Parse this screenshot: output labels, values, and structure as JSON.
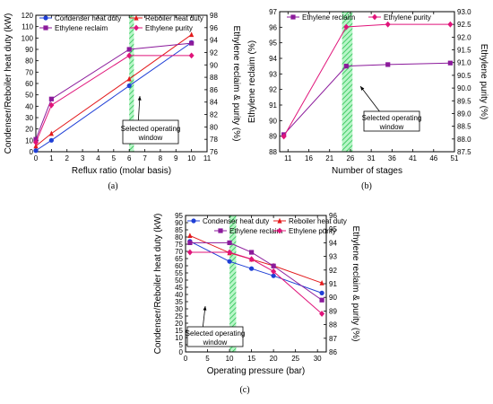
{
  "chart_data": [
    {
      "panel_label": "(a)",
      "type": "line",
      "xlabel": "Reflux ratio (molar basis)",
      "ylabel": "Condenser/Reboiler heat duty (kW)",
      "ylabel2": "Ethylene reclaim & purity (%)",
      "xlim": [
        0,
        11
      ],
      "ylim": [
        0,
        120
      ],
      "ylim2": [
        76,
        98
      ],
      "xticks": [
        0,
        1,
        2,
        3,
        4,
        5,
        6,
        7,
        8,
        9,
        10,
        11
      ],
      "yticks": [
        0,
        10,
        20,
        30,
        40,
        50,
        60,
        70,
        80,
        90,
        100,
        110,
        120
      ],
      "yticks2": [
        76,
        78,
        80,
        82,
        84,
        86,
        88,
        90,
        92,
        94,
        96,
        98
      ],
      "window": [
        6,
        6.3
      ],
      "annotation": "Selected operating window",
      "legend_position": "top",
      "series": [
        {
          "name": "Condenser heat duty",
          "axis": "left",
          "color": "#1f3fd6",
          "marker": "circle",
          "x": [
            0,
            1,
            6,
            10
          ],
          "y": [
            1,
            10,
            58,
            96
          ]
        },
        {
          "name": "Reboiler heat duty",
          "axis": "left",
          "color": "#e31a1c",
          "marker": "triangle",
          "x": [
            0,
            1,
            6,
            10
          ],
          "y": [
            5,
            16,
            64,
            103
          ]
        },
        {
          "name": "Ethylene reclaim",
          "axis": "right",
          "color": "#8b1a9b",
          "marker": "square",
          "x": [
            0,
            1,
            6,
            10
          ],
          "y": [
            78,
            84.5,
            92.5,
            93.5
          ]
        },
        {
          "name": "Ethylene purity",
          "axis": "right",
          "color": "#e0147a",
          "marker": "diamond",
          "x": [
            0,
            1,
            6,
            10
          ],
          "y": [
            77.5,
            83.5,
            91.5,
            91.5
          ]
        }
      ]
    },
    {
      "panel_label": "(b)",
      "type": "line",
      "xlabel": "Number of stages",
      "ylabel": "Ethylene reclaim (%)",
      "ylabel2": "Ethylene purity (%)",
      "xlim": [
        9,
        51
      ],
      "ylim": [
        88,
        97
      ],
      "ylim2": [
        87.5,
        93.0
      ],
      "xticks": [
        11,
        16,
        21,
        26,
        31,
        36,
        41,
        46,
        51
      ],
      "yticks": [
        88,
        89,
        90,
        91,
        92,
        93,
        94,
        95,
        96,
        97
      ],
      "yticks2": [
        "87.5",
        "88.0",
        "88.5",
        "89.0",
        "89.5",
        "90.0",
        "90.5",
        "91.0",
        "91.5",
        "92.0",
        "92.5",
        "93.0"
      ],
      "window": [
        24,
        26.5
      ],
      "annotation": "Selected operating window",
      "legend_position": "top",
      "series": [
        {
          "name": "Ethylene reclaim",
          "axis": "left",
          "color": "#8b1a9b",
          "marker": "square",
          "x": [
            10,
            25,
            35,
            50
          ],
          "y": [
            89.1,
            93.5,
            93.6,
            93.7
          ]
        },
        {
          "name": "Ethylene purity",
          "axis": "right",
          "color": "#e0147a",
          "marker": "diamond",
          "x": [
            10,
            25,
            35,
            50
          ],
          "y": [
            88.1,
            92.4,
            92.5,
            92.5
          ]
        }
      ]
    },
    {
      "panel_label": "(c)",
      "type": "line",
      "xlabel": "Operating pressure (bar)",
      "ylabel": "Condenser/Reboiler heat duty (kW)",
      "ylabel2": "Ethylene reclaim & purity (%)",
      "xlim": [
        0,
        32
      ],
      "ylim": [
        0,
        95
      ],
      "ylim2": [
        86,
        96
      ],
      "xticks": [
        0,
        5,
        10,
        15,
        20,
        25,
        30
      ],
      "yticks": [
        0,
        5,
        10,
        15,
        20,
        25,
        30,
        35,
        40,
        45,
        50,
        55,
        60,
        65,
        70,
        75,
        80,
        85,
        90,
        95
      ],
      "yticks2": [
        86,
        87,
        88,
        89,
        90,
        91,
        92,
        93,
        94,
        95,
        96
      ],
      "window": [
        10,
        11.5
      ],
      "annotation": "Selected operating window",
      "legend_position": "top",
      "series": [
        {
          "name": "Condenser heat duty",
          "axis": "left",
          "color": "#1f3fd6",
          "marker": "circle",
          "x": [
            1,
            10,
            15,
            20,
            31
          ],
          "y": [
            77,
            63,
            58,
            53,
            41
          ]
        },
        {
          "name": "Reboiler heat duty",
          "axis": "left",
          "color": "#e31a1c",
          "marker": "triangle",
          "x": [
            1,
            10,
            15,
            20,
            31
          ],
          "y": [
            81,
            69,
            64.5,
            60,
            48
          ]
        },
        {
          "name": "Ethylene reclaim",
          "axis": "right",
          "color": "#8b1a9b",
          "marker": "square",
          "x": [
            1,
            10,
            15,
            20,
            31
          ],
          "y": [
            94,
            94,
            93.3,
            92.3,
            89.8
          ]
        },
        {
          "name": "Ethylene purity",
          "axis": "right",
          "color": "#e0147a",
          "marker": "diamond",
          "x": [
            1,
            10,
            15,
            20,
            31
          ],
          "y": [
            93.3,
            93.3,
            92.8,
            91.9,
            88.8
          ]
        }
      ]
    }
  ]
}
